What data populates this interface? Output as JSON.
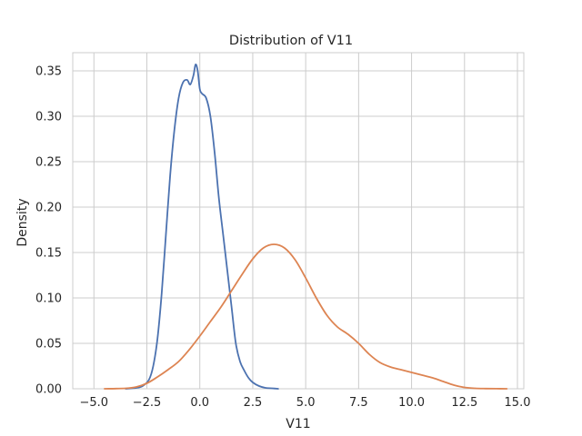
{
  "chart_data": {
    "type": "line",
    "title": "Distribution of V11",
    "xlabel": "V11",
    "ylabel": "Density",
    "xlim": [
      -6.0,
      15.3
    ],
    "ylim": [
      0,
      0.37
    ],
    "xticks": [
      -5.0,
      -2.5,
      0.0,
      2.5,
      5.0,
      7.5,
      10.0,
      12.5,
      15.0
    ],
    "xtick_labels": [
      "−5.0",
      "−2.5",
      "0.0",
      "2.5",
      "5.0",
      "7.5",
      "10.0",
      "12.5",
      "15.0"
    ],
    "yticks": [
      0.0,
      0.05,
      0.1,
      0.15,
      0.2,
      0.25,
      0.3,
      0.35
    ],
    "ytick_labels": [
      "0.00",
      "0.05",
      "0.10",
      "0.15",
      "0.20",
      "0.25",
      "0.30",
      "0.35"
    ],
    "grid": true,
    "series": [
      {
        "color": "#4c72b0",
        "x": [
          -3.5,
          -3.0,
          -2.7,
          -2.4,
          -2.2,
          -2.0,
          -1.8,
          -1.6,
          -1.4,
          -1.2,
          -1.0,
          -0.8,
          -0.6,
          -0.45,
          -0.3,
          -0.2,
          -0.1,
          0.0,
          0.1,
          0.3,
          0.5,
          0.7,
          0.9,
          1.1,
          1.3,
          1.5,
          1.7,
          1.9,
          2.1,
          2.3,
          2.5,
          2.8,
          3.1,
          3.4,
          3.7
        ],
        "y": [
          0.0,
          0.001,
          0.003,
          0.01,
          0.025,
          0.055,
          0.105,
          0.17,
          0.235,
          0.285,
          0.32,
          0.337,
          0.34,
          0.335,
          0.345,
          0.357,
          0.35,
          0.33,
          0.325,
          0.32,
          0.3,
          0.26,
          0.21,
          0.17,
          0.13,
          0.09,
          0.05,
          0.03,
          0.02,
          0.012,
          0.007,
          0.003,
          0.001,
          0.0005,
          0.0
        ]
      },
      {
        "color": "#dd8452",
        "x": [
          -4.5,
          -3.5,
          -3.0,
          -2.5,
          -2.0,
          -1.5,
          -1.0,
          -0.5,
          0.0,
          0.5,
          1.0,
          1.5,
          2.0,
          2.5,
          3.0,
          3.5,
          4.0,
          4.5,
          5.0,
          5.5,
          6.0,
          6.5,
          7.0,
          7.5,
          8.0,
          8.5,
          9.0,
          9.5,
          10.0,
          10.5,
          11.0,
          11.5,
          12.0,
          12.5,
          13.0,
          13.5,
          14.0,
          14.5
        ],
        "y": [
          0.0,
          0.0005,
          0.002,
          0.006,
          0.013,
          0.021,
          0.03,
          0.043,
          0.058,
          0.074,
          0.09,
          0.108,
          0.126,
          0.143,
          0.155,
          0.159,
          0.155,
          0.142,
          0.122,
          0.1,
          0.081,
          0.068,
          0.06,
          0.05,
          0.038,
          0.029,
          0.024,
          0.021,
          0.018,
          0.015,
          0.012,
          0.008,
          0.004,
          0.0015,
          0.0005,
          0.0002,
          0.0001,
          0.0
        ]
      }
    ]
  }
}
